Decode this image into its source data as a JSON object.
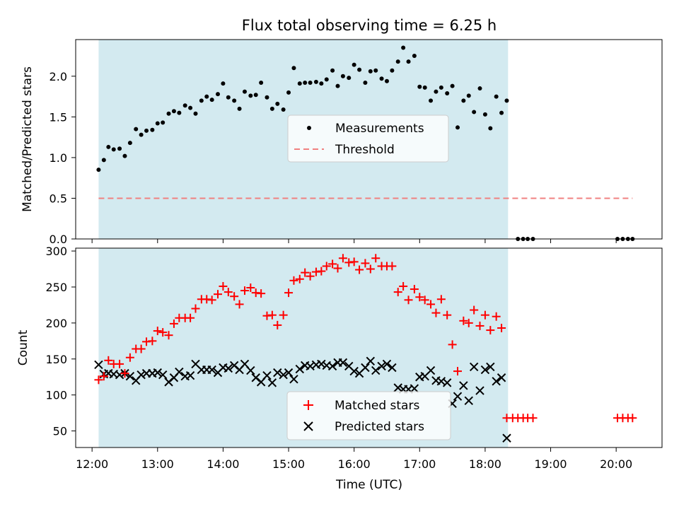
{
  "chart_data": {
    "type": "scatter",
    "title": "Flux total observing time = 6.25 h",
    "xlabel": "Time (UTC)",
    "xlim": [
      11.75,
      20.7
    ],
    "x_ticks": [
      12,
      13,
      14,
      15,
      16,
      17,
      18,
      19,
      20
    ],
    "x_tick_labels": [
      "12:00",
      "13:00",
      "14:00",
      "15:00",
      "16:00",
      "17:00",
      "18:00",
      "19:00",
      "20:00"
    ],
    "observing_window": {
      "start": 12.1,
      "end": 18.35,
      "color": "#d3eaf0"
    },
    "top": {
      "ylabel": "Matched/Predicted stars",
      "ylim": [
        0,
        2.45
      ],
      "y_ticks": [
        0,
        0.5,
        1,
        1.5,
        2
      ],
      "y_tick_labels": [
        "0.0",
        "0.5",
        "1.0",
        "1.5",
        "2.0"
      ],
      "legend": {
        "placement": "center",
        "items": [
          "Measurements",
          "Threshold"
        ]
      },
      "threshold": {
        "name": "Threshold",
        "value": 0.5,
        "x_range": [
          12.1,
          20.25
        ],
        "color": "#f08080"
      },
      "measurements": {
        "name": "Measurements",
        "x": [
          12.1,
          12.18,
          12.25,
          12.33,
          12.42,
          12.5,
          12.58,
          12.67,
          12.75,
          12.83,
          12.92,
          13.0,
          13.08,
          13.17,
          13.25,
          13.33,
          13.42,
          13.5,
          13.58,
          13.67,
          13.75,
          13.83,
          13.92,
          14.0,
          14.08,
          14.17,
          14.25,
          14.33,
          14.42,
          14.5,
          14.58,
          14.67,
          14.75,
          14.83,
          14.92,
          15.0,
          15.08,
          15.17,
          15.25,
          15.33,
          15.42,
          15.5,
          15.58,
          15.67,
          15.75,
          15.83,
          15.92,
          16.0,
          16.08,
          16.17,
          16.25,
          16.33,
          16.42,
          16.5,
          16.58,
          16.67,
          16.75,
          16.83,
          16.92,
          17.0,
          17.08,
          17.17,
          17.25,
          17.33,
          17.42,
          17.5,
          17.58,
          17.67,
          17.75,
          17.83,
          17.92,
          18.0,
          18.08,
          18.17,
          18.25,
          18.33,
          18.5,
          18.58,
          18.65,
          18.73,
          20.02,
          20.1,
          20.18,
          20.25
        ],
        "y": [
          0.85,
          0.97,
          1.13,
          1.1,
          1.11,
          1.02,
          1.18,
          1.35,
          1.28,
          1.33,
          1.34,
          1.42,
          1.43,
          1.54,
          1.57,
          1.55,
          1.64,
          1.61,
          1.54,
          1.7,
          1.75,
          1.71,
          1.78,
          1.91,
          1.74,
          1.7,
          1.6,
          1.81,
          1.76,
          1.77,
          1.92,
          1.74,
          1.6,
          1.66,
          1.59,
          1.8,
          2.1,
          1.91,
          1.92,
          1.92,
          1.93,
          1.91,
          1.96,
          2.07,
          1.88,
          2.0,
          1.98,
          2.14,
          2.08,
          1.92,
          2.06,
          2.07,
          1.97,
          1.94,
          2.07,
          2.18,
          2.35,
          2.18,
          2.25,
          1.87,
          1.86,
          1.7,
          1.81,
          1.86,
          1.79,
          1.88,
          1.37,
          1.7,
          1.76,
          1.56,
          1.85,
          1.53,
          1.36,
          1.75,
          1.55,
          1.7,
          0.0,
          0.0,
          0.0,
          0.0,
          0.0,
          0.0,
          0.0,
          0.0
        ]
      }
    },
    "bottom": {
      "ylabel": "Count",
      "ylim": [
        27,
        304
      ],
      "y_ticks": [
        50,
        100,
        150,
        200,
        250,
        300
      ],
      "y_tick_labels": [
        "50",
        "100",
        "150",
        "200",
        "250",
        "300"
      ],
      "legend": {
        "placement": "lower center",
        "items": [
          "Matched stars",
          "Predicted stars"
        ]
      },
      "series": [
        {
          "name": "Matched stars",
          "marker": "plus",
          "color": "#ff0000",
          "x": [
            12.1,
            12.18,
            12.25,
            12.33,
            12.42,
            12.5,
            12.58,
            12.67,
            12.75,
            12.83,
            12.92,
            13.0,
            13.08,
            13.17,
            13.25,
            13.33,
            13.42,
            13.5,
            13.58,
            13.67,
            13.75,
            13.83,
            13.92,
            14.0,
            14.08,
            14.17,
            14.25,
            14.33,
            14.42,
            14.5,
            14.58,
            14.67,
            14.75,
            14.83,
            14.92,
            15.0,
            15.08,
            15.17,
            15.25,
            15.33,
            15.42,
            15.5,
            15.58,
            15.67,
            15.75,
            15.83,
            15.92,
            16.0,
            16.08,
            16.17,
            16.25,
            16.33,
            16.42,
            16.5,
            16.58,
            16.67,
            16.75,
            16.83,
            16.92,
            17.0,
            17.08,
            17.17,
            17.25,
            17.33,
            17.42,
            17.5,
            17.58,
            17.67,
            17.75,
            17.83,
            17.92,
            18.0,
            18.08,
            18.17,
            18.25,
            18.33,
            18.42,
            18.5,
            18.58,
            18.65,
            18.73,
            20.02,
            20.1,
            20.18,
            20.25
          ],
          "y": [
            121,
            126,
            148,
            143,
            143,
            130,
            152,
            164,
            164,
            174,
            175,
            189,
            187,
            183,
            199,
            207,
            207,
            207,
            220,
            233,
            233,
            232,
            240,
            251,
            243,
            237,
            226,
            245,
            249,
            242,
            241,
            210,
            211,
            197,
            211,
            242,
            259,
            261,
            270,
            265,
            271,
            272,
            279,
            282,
            276,
            290,
            284,
            285,
            274,
            283,
            275,
            290,
            279,
            279,
            279,
            243,
            251,
            232,
            247,
            236,
            232,
            226,
            214,
            233,
            211,
            170,
            133,
            203,
            200,
            218,
            196,
            211,
            190,
            209,
            193,
            68,
            68,
            68,
            68,
            68,
            68,
            68,
            68,
            68,
            68
          ]
        },
        {
          "name": "Predicted stars",
          "marker": "x",
          "color": "#000000",
          "x": [
            12.1,
            12.18,
            12.25,
            12.33,
            12.42,
            12.5,
            12.58,
            12.67,
            12.75,
            12.83,
            12.92,
            13.0,
            13.08,
            13.17,
            13.25,
            13.33,
            13.42,
            13.5,
            13.58,
            13.67,
            13.75,
            13.83,
            13.92,
            14.0,
            14.08,
            14.17,
            14.25,
            14.33,
            14.42,
            14.5,
            14.58,
            14.67,
            14.75,
            14.83,
            14.92,
            15.0,
            15.08,
            15.17,
            15.25,
            15.33,
            15.42,
            15.5,
            15.58,
            15.67,
            15.75,
            15.83,
            15.92,
            16.0,
            16.08,
            16.17,
            16.25,
            16.33,
            16.42,
            16.5,
            16.58,
            16.67,
            16.75,
            16.83,
            16.92,
            17.0,
            17.08,
            17.17,
            17.25,
            17.33,
            17.42,
            17.5,
            17.58,
            17.67,
            17.75,
            17.83,
            17.92,
            18.0,
            18.08,
            18.17,
            18.25,
            18.33
          ],
          "y": [
            142,
            129,
            130,
            129,
            128,
            130,
            126,
            120,
            128,
            130,
            130,
            131,
            128,
            118,
            124,
            132,
            126,
            127,
            143,
            135,
            135,
            135,
            131,
            138,
            137,
            141,
            135,
            143,
            134,
            124,
            118,
            127,
            117,
            131,
            128,
            131,
            122,
            136,
            141,
            140,
            142,
            143,
            141,
            140,
            145,
            145,
            140,
            133,
            130,
            138,
            147,
            134,
            140,
            143,
            138,
            110,
            108,
            108,
            109,
            125,
            126,
            134,
            120,
            119,
            117,
            88,
            98,
            113,
            92,
            139,
            106,
            135,
            139,
            119,
            124,
            40
          ]
        }
      ]
    }
  }
}
